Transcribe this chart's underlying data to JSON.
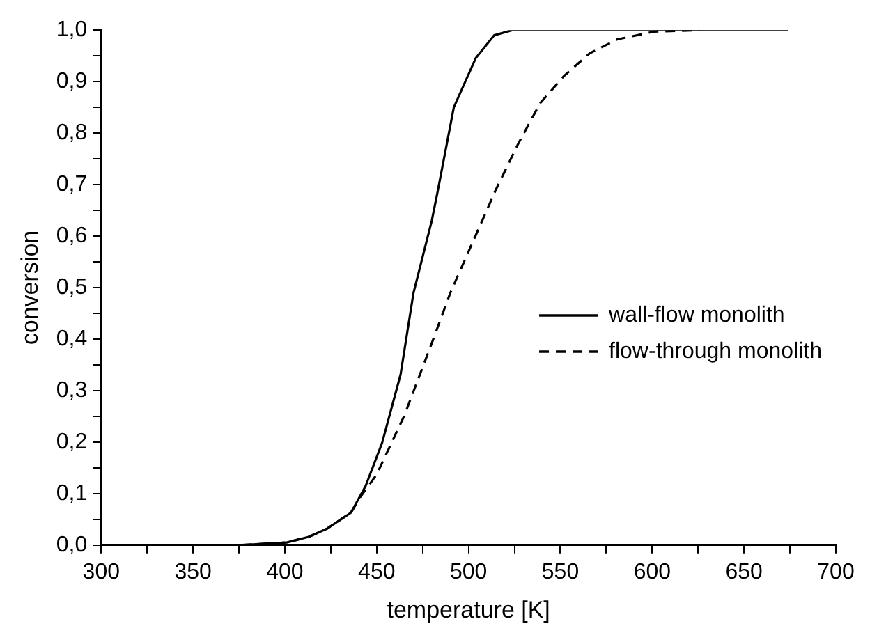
{
  "chart_data": {
    "type": "line",
    "xlabel": "temperature [K]",
    "ylabel": "conversion",
    "xlim": [
      300,
      700
    ],
    "ylim": [
      0,
      1
    ],
    "xticks": [
      300,
      {
        "value": 325,
        "label": null
      },
      350,
      {
        "value": 375,
        "label": null
      },
      400,
      {
        "value": 425,
        "label": null
      },
      450,
      {
        "value": 475,
        "label": null
      },
      500,
      {
        "value": 525,
        "label": null
      },
      550,
      {
        "value": 575,
        "label": null
      },
      600,
      {
        "value": 625,
        "label": null
      },
      650,
      {
        "value": 675,
        "label": null
      },
      700
    ],
    "yticks": [
      {
        "value": 0,
        "label": "0,0"
      },
      {
        "value": 0.05,
        "label": null
      },
      {
        "value": 0.1,
        "label": "0,1"
      },
      {
        "value": 0.15,
        "label": null
      },
      {
        "value": 0.2,
        "label": "0,2"
      },
      {
        "value": 0.25,
        "label": null
      },
      {
        "value": 0.3,
        "label": "0,3"
      },
      {
        "value": 0.35,
        "label": null
      },
      {
        "value": 0.4,
        "label": "0,4"
      },
      {
        "value": 0.45,
        "label": null
      },
      {
        "value": 0.5,
        "label": "0,5"
      },
      {
        "value": 0.55,
        "label": null
      },
      {
        "value": 0.6,
        "label": "0,6"
      },
      {
        "value": 0.65,
        "label": null
      },
      {
        "value": 0.7,
        "label": "0,7"
      },
      {
        "value": 0.75,
        "label": null
      },
      {
        "value": 0.8,
        "label": "0,8"
      },
      {
        "value": 0.85,
        "label": null
      },
      {
        "value": 0.9,
        "label": "0,9"
      },
      {
        "value": 0.95,
        "label": null
      },
      {
        "value": 1,
        "label": "1,0"
      }
    ],
    "grid": false,
    "legend": "right",
    "marker": "none",
    "series": [
      {
        "name": "wall-flow monolith",
        "color": "#000000",
        "line_style": "solid",
        "x": [
          313,
          376,
          401,
          413,
          423,
          436,
          444,
          453,
          463,
          470,
          480,
          483,
          492,
          504,
          514,
          524,
          674
        ],
        "values": [
          0,
          0,
          0.005,
          0.016,
          0.032,
          0.063,
          0.115,
          0.199,
          0.331,
          0.489,
          0.63,
          0.683,
          0.85,
          0.946,
          0.99,
          1,
          1
        ]
      },
      {
        "name": "flow-through monolith",
        "color": "#000000",
        "line_style": "dashed",
        "x": [
          313,
          376,
          401,
          413,
          423,
          436,
          441,
          450,
          465,
          480,
          490,
          502,
          515,
          527,
          539,
          552,
          566,
          581,
          601,
          626
        ],
        "values": [
          0,
          0,
          0.005,
          0.016,
          0.032,
          0.063,
          0.093,
          0.137,
          0.251,
          0.392,
          0.489,
          0.586,
          0.691,
          0.779,
          0.858,
          0.911,
          0.955,
          0.982,
          0.997,
          1
        ]
      }
    ]
  }
}
